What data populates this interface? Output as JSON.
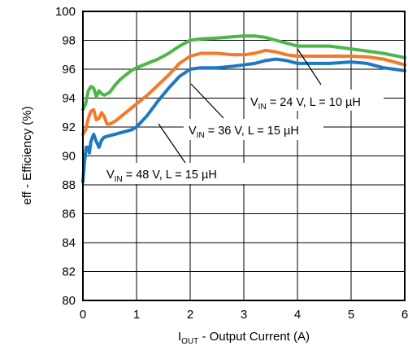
{
  "chart_data": {
    "type": "line",
    "xlabel": "I<sub>OUT</sub> - Output Current (A)",
    "xlabel_main": "I",
    "xlabel_sub": "OUT",
    "xlabel_rest": " - Output Current (A)",
    "ylabel": "eff - Efficiency (%)",
    "xlim": [
      0,
      6
    ],
    "ylim": [
      80,
      100
    ],
    "x_ticks": [
      "0",
      "1",
      "2",
      "3",
      "4",
      "5",
      "6"
    ],
    "y_ticks": [
      "80",
      "82",
      "84",
      "86",
      "88",
      "90",
      "92",
      "94",
      "96",
      "98",
      "100"
    ],
    "grid": true,
    "series": [
      {
        "id": "s24",
        "color": "#4cb748",
        "label_pre": "V",
        "label_sub": "IN",
        "label_post": " = 24 V, L = 10 µH",
        "points": [
          [
            0.0,
            93.2
          ],
          [
            0.05,
            93.6
          ],
          [
            0.1,
            94.5
          ],
          [
            0.15,
            94.8
          ],
          [
            0.2,
            94.7
          ],
          [
            0.25,
            94.1
          ],
          [
            0.3,
            94.5
          ],
          [
            0.35,
            94.3
          ],
          [
            0.4,
            94.2
          ],
          [
            0.5,
            94.4
          ],
          [
            0.6,
            94.9
          ],
          [
            0.7,
            95.3
          ],
          [
            0.8,
            95.6
          ],
          [
            0.9,
            95.9
          ],
          [
            1.0,
            96.1
          ],
          [
            1.2,
            96.4
          ],
          [
            1.4,
            96.7
          ],
          [
            1.6,
            97.1
          ],
          [
            1.8,
            97.6
          ],
          [
            2.0,
            98.0
          ],
          [
            2.2,
            98.1
          ],
          [
            2.5,
            98.15
          ],
          [
            2.8,
            98.25
          ],
          [
            3.0,
            98.3
          ],
          [
            3.2,
            98.3
          ],
          [
            3.4,
            98.2
          ],
          [
            3.6,
            98.0
          ],
          [
            3.8,
            97.8
          ],
          [
            4.0,
            97.6
          ],
          [
            4.2,
            97.6
          ],
          [
            4.4,
            97.6
          ],
          [
            4.6,
            97.6
          ],
          [
            4.8,
            97.5
          ],
          [
            5.0,
            97.4
          ],
          [
            5.2,
            97.3
          ],
          [
            5.4,
            97.2
          ],
          [
            5.6,
            97.1
          ],
          [
            5.8,
            96.95
          ],
          [
            6.0,
            96.8
          ]
        ]
      },
      {
        "id": "s36",
        "color": "#f47a2b",
        "label_pre": "V",
        "label_sub": "IN",
        "label_post": " = 36 V, L = 15 µH",
        "points": [
          [
            0.0,
            91.5
          ],
          [
            0.05,
            91.8
          ],
          [
            0.1,
            92.6
          ],
          [
            0.15,
            93.1
          ],
          [
            0.2,
            93.2
          ],
          [
            0.25,
            92.5
          ],
          [
            0.3,
            92.6
          ],
          [
            0.35,
            93.0
          ],
          [
            0.4,
            92.7
          ],
          [
            0.45,
            92.2
          ],
          [
            0.5,
            92.2
          ],
          [
            0.6,
            92.4
          ],
          [
            0.7,
            92.7
          ],
          [
            0.8,
            93.0
          ],
          [
            0.9,
            93.3
          ],
          [
            1.0,
            93.6
          ],
          [
            1.2,
            94.2
          ],
          [
            1.4,
            94.9
          ],
          [
            1.6,
            95.6
          ],
          [
            1.8,
            96.4
          ],
          [
            2.0,
            96.9
          ],
          [
            2.2,
            97.1
          ],
          [
            2.5,
            97.1
          ],
          [
            2.8,
            97.0
          ],
          [
            3.0,
            97.0
          ],
          [
            3.2,
            97.1
          ],
          [
            3.4,
            97.3
          ],
          [
            3.6,
            97.2
          ],
          [
            3.8,
            97.0
          ],
          [
            4.0,
            96.9
          ],
          [
            4.3,
            96.9
          ],
          [
            4.6,
            96.9
          ],
          [
            5.0,
            96.9
          ],
          [
            5.3,
            96.85
          ],
          [
            5.6,
            96.7
          ],
          [
            5.8,
            96.5
          ],
          [
            6.0,
            96.3
          ]
        ]
      },
      {
        "id": "s48",
        "color": "#1f78c1",
        "label_pre": "V",
        "label_sub": "IN",
        "label_post": " = 48 V, L = 15 µH",
        "points": [
          [
            0.0,
            88.2
          ],
          [
            0.03,
            89.6
          ],
          [
            0.06,
            90.6
          ],
          [
            0.1,
            90.6
          ],
          [
            0.12,
            90.2
          ],
          [
            0.15,
            91.0
          ],
          [
            0.2,
            91.5
          ],
          [
            0.25,
            91.0
          ],
          [
            0.3,
            90.6
          ],
          [
            0.35,
            91.1
          ],
          [
            0.4,
            91.3
          ],
          [
            0.5,
            91.4
          ],
          [
            0.6,
            91.5
          ],
          [
            0.7,
            91.6
          ],
          [
            0.8,
            91.7
          ],
          [
            0.9,
            91.8
          ],
          [
            1.0,
            92.0
          ],
          [
            1.2,
            92.8
          ],
          [
            1.4,
            93.8
          ],
          [
            1.6,
            94.7
          ],
          [
            1.8,
            95.5
          ],
          [
            2.0,
            96.0
          ],
          [
            2.2,
            96.1
          ],
          [
            2.5,
            96.1
          ],
          [
            2.8,
            96.2
          ],
          [
            3.0,
            96.3
          ],
          [
            3.2,
            96.4
          ],
          [
            3.4,
            96.6
          ],
          [
            3.6,
            96.7
          ],
          [
            3.8,
            96.6
          ],
          [
            4.0,
            96.4
          ],
          [
            4.3,
            96.4
          ],
          [
            4.6,
            96.4
          ],
          [
            5.0,
            96.5
          ],
          [
            5.3,
            96.4
          ],
          [
            5.6,
            96.1
          ],
          [
            5.8,
            96.0
          ],
          [
            6.0,
            95.9
          ]
        ]
      }
    ]
  }
}
